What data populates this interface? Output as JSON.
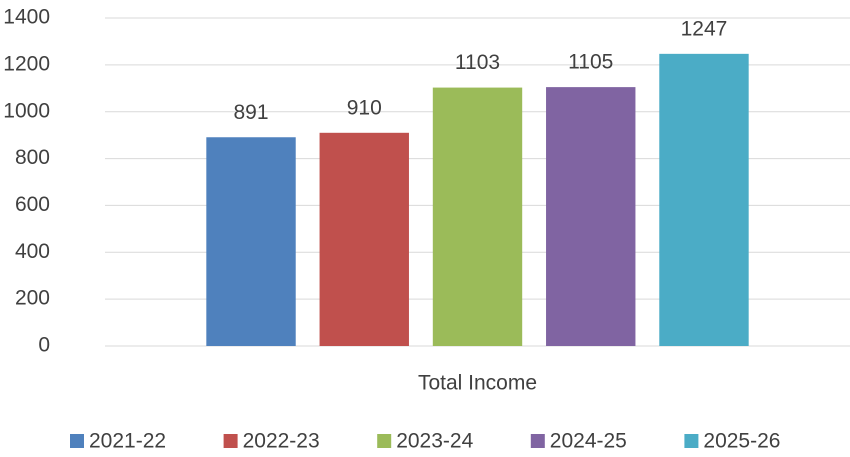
{
  "chart_data": {
    "type": "bar",
    "categories": [
      "Total Income"
    ],
    "series": [
      {
        "name": "2021-22",
        "color": "#4f81bd",
        "values": [
          891
        ]
      },
      {
        "name": "2022-23",
        "color": "#c0504d",
        "values": [
          910
        ]
      },
      {
        "name": "2023-24",
        "color": "#9bbb59",
        "values": [
          1103
        ]
      },
      {
        "name": "2024-25",
        "color": "#8064a2",
        "values": [
          1105
        ]
      },
      {
        "name": "2025-26",
        "color": "#4bacc6",
        "values": [
          1247
        ]
      }
    ],
    "ylim": [
      0,
      1400
    ],
    "yticks": [
      0,
      200,
      400,
      600,
      800,
      1000,
      1200,
      1400
    ],
    "grid": true,
    "data_labels": true,
    "legend": "bottom"
  }
}
